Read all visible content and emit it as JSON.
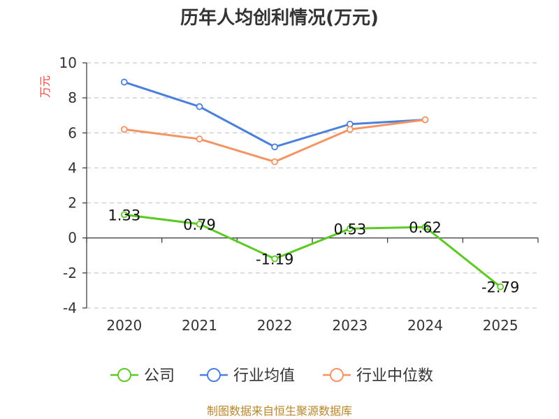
{
  "chart_data": {
    "type": "line",
    "title": "历年人均创利情况(万元)",
    "ylabel": "万元",
    "categories": [
      "2020",
      "2021",
      "2022",
      "2023",
      "2024",
      "2025"
    ],
    "yticks": [
      "10",
      "8",
      "6",
      "4",
      "2",
      "0",
      "-2",
      "-4"
    ],
    "ylim": [
      -4,
      10
    ],
    "grid": true,
    "legend_position": "bottom",
    "series": [
      {
        "name": "公司",
        "color": "#5cc925",
        "values": [
          1.33,
          0.79,
          -1.19,
          0.53,
          0.62,
          -2.79
        ],
        "labels": [
          "1.33",
          "0.79",
          "-1.19",
          "0.53",
          "0.62",
          "-2.79"
        ]
      },
      {
        "name": "行业均值",
        "color": "#4b7fdc",
        "values": [
          8.9,
          7.5,
          5.2,
          6.5,
          6.75,
          null
        ]
      },
      {
        "name": "行业中位数",
        "color": "#f59462",
        "values": [
          6.2,
          5.65,
          4.35,
          6.2,
          6.75,
          null
        ]
      }
    ]
  },
  "source": "制图数据来自恒生聚源数据库"
}
